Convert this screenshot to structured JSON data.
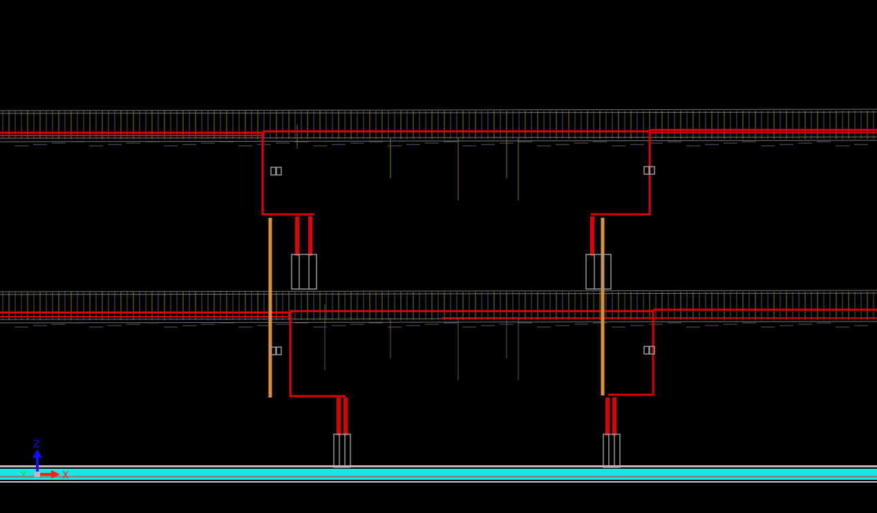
{
  "viewport": {
    "background": "#000000"
  },
  "colors": {
    "pipe": "#e00000",
    "column": "#d9903f",
    "hanger_yellow": "#8a7a10",
    "hanger_purple": "#6a5070",
    "ground": "#19e6e6",
    "support": "#9a9a9a"
  },
  "axis_triad": {
    "icon": "axis-triad-icon",
    "z_label": "Z",
    "y_label": "Y",
    "x_label": "X",
    "z_color": "#1010ff",
    "y_color": "#20d020",
    "x_color": "#ff2020"
  }
}
